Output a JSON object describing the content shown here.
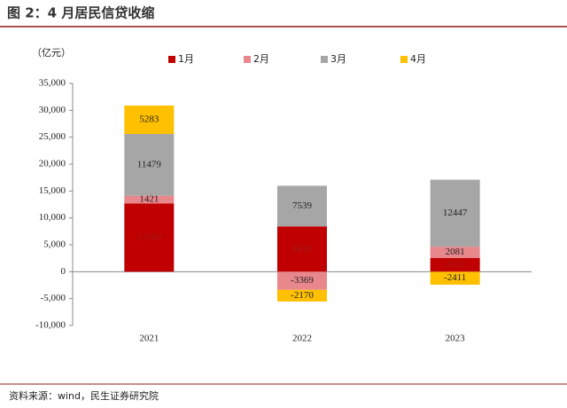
{
  "chart_data": {
    "type": "bar",
    "stacked": true,
    "title": "图 2：4 月居民信贷收缩",
    "unit": "（亿元）",
    "source": "资料来源：wind，民生证券研究院",
    "categories": [
      "2021",
      "2022",
      "2023"
    ],
    "series": [
      {
        "name": "1月",
        "color": "#c00000",
        "values": [
          12700,
          8430,
          2572
        ]
      },
      {
        "name": "2月",
        "color": "#e8878c",
        "values": [
          1421,
          -3369,
          2081
        ]
      },
      {
        "name": "3月",
        "color": "#a6a6a6",
        "values": [
          11479,
          7539,
          12447
        ]
      },
      {
        "name": "4月",
        "color": "#ffc000",
        "values": [
          5283,
          -2170,
          -2411
        ]
      }
    ],
    "ylim": [
      -10000,
      35000
    ],
    "yticks": [
      {
        "value": -10000,
        "label": "-10,000"
      },
      {
        "value": -5000,
        "label": "-5,000"
      },
      0,
      {
        "value": 5000,
        "label": "5,000"
      },
      {
        "value": 10000,
        "label": "10,000"
      },
      {
        "value": 15000,
        "label": "15,000"
      },
      {
        "value": 20000,
        "label": "20,000"
      },
      {
        "value": 25000,
        "label": "25,000"
      },
      {
        "value": 30000,
        "label": "30,000"
      },
      {
        "value": 35000,
        "label": "35,000"
      }
    ],
    "grid": false
  }
}
